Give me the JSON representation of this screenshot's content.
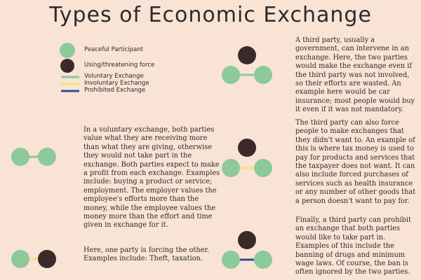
{
  "title": "Types of Economic Exchange",
  "legend": {
    "peaceful": "Peaceful Participant",
    "force": "Using/threatening force",
    "voluntary": "Voluntary Exchange",
    "involuntary": "Involuntary Exchange",
    "prohibited": "Prohibited Exchange"
  },
  "colors": {
    "background": "#f9e3d5",
    "peaceful": "#8dc99a",
    "force": "#3b2a2a",
    "voluntary": "#8dc99a",
    "involuntary": "#f3e27a",
    "prohibited": "#2e4d9c"
  },
  "paragraphs": {
    "voluntary": "In a voluntary exchange, both parties value what they are receiving more than what they are giving, otherwise they would not take part in the exchange. Both parties expect to make a profit from each exchange. Examples include: buying a product or service; employment. The employer values the employee's efforts more than the money, while the employee values the money more than the effort and time given in exchange for it.",
    "forcing": "Here, one party is forcing the other. Examples include: Theft, taxation.",
    "third_party_intervene": "A third party, usually a government, can intervene in an exchange. Here, the two parties would make the exchange even if the third party was not involved, so their efforts are wasted. An example here would be car insurance; most people would buy it even if it was not mandatory.",
    "third_party_force": "The third party can also force people to make exchanges that they didn't want to. An example of this is where tax money is used to pay for products and services that the taxpayer does not want. It can also include forced purchases of services such as health insurance or any number of other goods that a person doesn't want to pay for.",
    "prohibit": "Finally, a third party can prohibit an exchange that both parties would like to take part in. Examples of this include the banning of drugs and minimum wage laws. Of course, the ban is often ignored by the two parties."
  }
}
